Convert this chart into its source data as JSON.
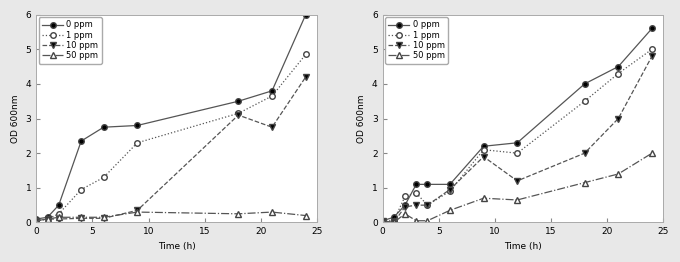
{
  "left": {
    "series": [
      {
        "label": "0 ppm",
        "x": [
          0,
          1,
          2,
          4,
          6,
          9,
          18,
          21,
          24
        ],
        "y": [
          0.1,
          0.15,
          0.5,
          2.35,
          2.75,
          2.8,
          3.5,
          3.8,
          6.0
        ],
        "linestyle": "-",
        "marker": "o",
        "markerfacecolor": "black"
      },
      {
        "label": "1 ppm",
        "x": [
          0,
          1,
          2,
          4,
          6,
          9,
          18,
          21,
          24
        ],
        "y": [
          0.05,
          0.1,
          0.25,
          0.95,
          1.3,
          2.3,
          3.15,
          3.65,
          4.85
        ],
        "linestyle": ":",
        "marker": "o",
        "markerfacecolor": "white"
      },
      {
        "label": "10 ppm",
        "x": [
          0,
          1,
          2,
          4,
          6,
          9,
          18,
          21,
          24
        ],
        "y": [
          0.05,
          0.1,
          0.1,
          0.12,
          0.12,
          0.35,
          3.1,
          2.75,
          4.2
        ],
        "linestyle": "--",
        "marker": "v",
        "markerfacecolor": "black"
      },
      {
        "label": "50 ppm",
        "x": [
          0,
          1,
          2,
          4,
          6,
          9,
          18,
          21,
          24
        ],
        "y": [
          0.05,
          0.1,
          0.15,
          0.15,
          0.15,
          0.3,
          0.25,
          0.3,
          0.2
        ],
        "linestyle": "-.",
        "marker": "^",
        "markerfacecolor": "white"
      }
    ],
    "xlabel": "Time (h)",
    "ylabel": "OD 600nm",
    "xlim": [
      0,
      25
    ],
    "ylim": [
      0,
      6
    ],
    "yticks": [
      0,
      1,
      2,
      3,
      4,
      5,
      6
    ],
    "xticks": [
      0,
      5,
      10,
      15,
      20,
      25
    ]
  },
  "right": {
    "series": [
      {
        "label": "0 ppm",
        "x": [
          0,
          1,
          2,
          3,
          4,
          6,
          9,
          12,
          18,
          21,
          24
        ],
        "y": [
          0.05,
          0.15,
          0.5,
          1.1,
          1.1,
          1.1,
          2.2,
          2.3,
          4.0,
          4.5,
          5.6
        ],
        "linestyle": "-",
        "marker": "o",
        "markerfacecolor": "black"
      },
      {
        "label": "1 ppm",
        "x": [
          0,
          1,
          2,
          3,
          4,
          6,
          9,
          12,
          18,
          21,
          24
        ],
        "y": [
          0.05,
          0.05,
          0.75,
          0.85,
          0.5,
          0.9,
          2.1,
          2.0,
          3.5,
          4.3,
          5.0
        ],
        "linestyle": ":",
        "marker": "o",
        "markerfacecolor": "white"
      },
      {
        "label": "10 ppm",
        "x": [
          0,
          1,
          2,
          3,
          4,
          6,
          9,
          12,
          18,
          21,
          24
        ],
        "y": [
          0.05,
          0.0,
          0.45,
          0.5,
          0.5,
          0.95,
          1.9,
          1.2,
          2.0,
          3.0,
          4.8
        ],
        "linestyle": "--",
        "marker": "v",
        "markerfacecolor": "black"
      },
      {
        "label": "50 ppm",
        "x": [
          0,
          1,
          2,
          3,
          4,
          6,
          9,
          12,
          18,
          21,
          24
        ],
        "y": [
          0.05,
          0.0,
          0.25,
          0.05,
          0.05,
          0.35,
          0.7,
          0.65,
          1.15,
          1.4,
          2.0
        ],
        "linestyle": "-.",
        "marker": "^",
        "markerfacecolor": "white"
      }
    ],
    "xlabel": "Time (h)",
    "ylabel": "OD 600nm",
    "xlim": [
      0,
      25
    ],
    "ylim": [
      0,
      6
    ],
    "yticks": [
      0,
      1,
      2,
      3,
      4,
      5,
      6
    ],
    "xticks": [
      0,
      5,
      10,
      15,
      20,
      25
    ]
  },
  "fig_bg": "#e8e8e8",
  "ax_bg": "#ffffff",
  "line_color": "#555555",
  "marker_edge_color": "#444444",
  "font_size": 6.5,
  "markersize": 4,
  "linewidth": 0.9
}
